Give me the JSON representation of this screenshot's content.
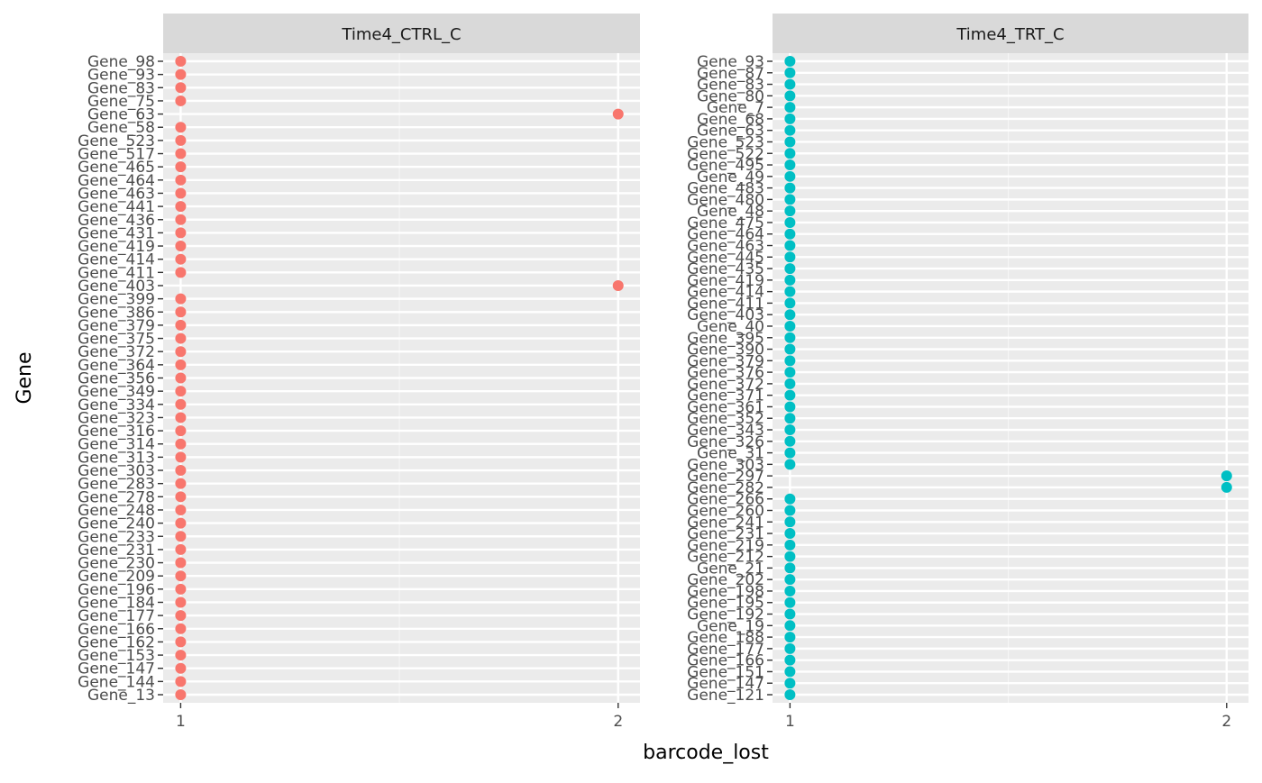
{
  "chart_data": {
    "type": "scatter",
    "xlabel": "barcode_lost",
    "ylabel": "Gene",
    "grid": true,
    "legend": "none",
    "x_ticks": [
      "1",
      "2"
    ],
    "xlim": [
      0.96,
      2.05
    ],
    "panels": [
      {
        "title": "Time4_CTRL_C",
        "color": "#F8766D",
        "genes": [
          "Gene_98",
          "Gene_93",
          "Gene_83",
          "Gene_75",
          "Gene_63",
          "Gene_58",
          "Gene_523",
          "Gene_517",
          "Gene_465",
          "Gene_464",
          "Gene_463",
          "Gene_441",
          "Gene_436",
          "Gene_431",
          "Gene_419",
          "Gene_414",
          "Gene_411",
          "Gene_403",
          "Gene_399",
          "Gene_386",
          "Gene_379",
          "Gene_375",
          "Gene_372",
          "Gene_364",
          "Gene_356",
          "Gene_349",
          "Gene_334",
          "Gene_323",
          "Gene_316",
          "Gene_314",
          "Gene_313",
          "Gene_303",
          "Gene_283",
          "Gene_278",
          "Gene_248",
          "Gene_240",
          "Gene_233",
          "Gene_231",
          "Gene_230",
          "Gene_209",
          "Gene_196",
          "Gene_184",
          "Gene_177",
          "Gene_166",
          "Gene_162",
          "Gene_153",
          "Gene_147",
          "Gene_144",
          "Gene_13"
        ],
        "values": [
          1,
          1,
          1,
          1,
          2,
          1,
          1,
          1,
          1,
          1,
          1,
          1,
          1,
          1,
          1,
          1,
          1,
          2,
          1,
          1,
          1,
          1,
          1,
          1,
          1,
          1,
          1,
          1,
          1,
          1,
          1,
          1,
          1,
          1,
          1,
          1,
          1,
          1,
          1,
          1,
          1,
          1,
          1,
          1,
          1,
          1,
          1,
          1,
          1
        ]
      },
      {
        "title": "Time4_TRT_C",
        "color": "#00BFC4",
        "genes": [
          "Gene_93",
          "Gene_87",
          "Gene_83",
          "Gene_80",
          "Gene_7",
          "Gene_68",
          "Gene_63",
          "Gene_523",
          "Gene_522",
          "Gene_495",
          "Gene_49",
          "Gene_483",
          "Gene_480",
          "Gene_48",
          "Gene_475",
          "Gene_464",
          "Gene_463",
          "Gene_445",
          "Gene_435",
          "Gene_419",
          "Gene_414",
          "Gene_411",
          "Gene_403",
          "Gene_40",
          "Gene_395",
          "Gene_390",
          "Gene_379",
          "Gene_376",
          "Gene_372",
          "Gene_371",
          "Gene_361",
          "Gene_352",
          "Gene_343",
          "Gene_326",
          "Gene_31",
          "Gene_303",
          "Gene_297",
          "Gene_282",
          "Gene_266",
          "Gene_260",
          "Gene_241",
          "Gene_231",
          "Gene_219",
          "Gene_212",
          "Gene_21",
          "Gene_202",
          "Gene_198",
          "Gene_195",
          "Gene_192",
          "Gene_19",
          "Gene_188",
          "Gene_177",
          "Gene_166",
          "Gene_151",
          "Gene_147",
          "Gene_121"
        ],
        "values": [
          1,
          1,
          1,
          1,
          1,
          1,
          1,
          1,
          1,
          1,
          1,
          1,
          1,
          1,
          1,
          1,
          1,
          1,
          1,
          1,
          1,
          1,
          1,
          1,
          1,
          1,
          1,
          1,
          1,
          1,
          1,
          1,
          1,
          1,
          1,
          1,
          2,
          2,
          1,
          1,
          1,
          1,
          1,
          1,
          1,
          1,
          1,
          1,
          1,
          1,
          1,
          1,
          1,
          1,
          1,
          1
        ]
      }
    ]
  }
}
